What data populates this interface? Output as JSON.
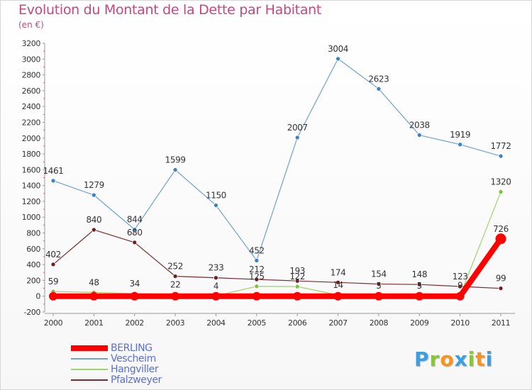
{
  "title": "Evolution du Montant de la Dette par Habitant",
  "subtitle": "(en €)",
  "brand": {
    "letters": [
      "P",
      "r",
      "o",
      "x",
      "i",
      "t",
      "i"
    ],
    "colors": [
      "#3aa0e0",
      "#8ac43f",
      "#f7941d",
      "#3aa0e0",
      "#8ac43f",
      "#f7941d",
      "#3aa0e0"
    ]
  },
  "chart_data": {
    "type": "line",
    "x": [
      "2000",
      "2001",
      "2002",
      "2003",
      "2004",
      "2005",
      "2006",
      "2007",
      "2008",
      "2009",
      "2010",
      "2011"
    ],
    "ylim": [
      -200,
      3200
    ],
    "yticks": [
      -200,
      0,
      200,
      400,
      600,
      800,
      1000,
      1200,
      1400,
      1600,
      1800,
      2000,
      2200,
      2400,
      2600,
      2800,
      3000,
      3200
    ],
    "grid": false,
    "legend_position": "bottom-left",
    "series": [
      {
        "name": "Vescheim",
        "color": "#6ea2cc",
        "marker_color": "#3b82c4",
        "width": 1.2,
        "values": [
          1461,
          1279,
          844,
          1599,
          1150,
          452,
          2007,
          3004,
          2623,
          2038,
          1919,
          1772
        ],
        "labels": [
          "1461",
          "1279",
          "844",
          "1599",
          "1150",
          "452",
          "2007",
          "3004",
          "2623",
          "2038",
          "1919",
          "1772"
        ]
      },
      {
        "name": "Pfalzweyer",
        "color": "#7a2a30",
        "marker_color": "#6d1f26",
        "width": 1.2,
        "values": [
          402,
          840,
          680,
          252,
          233,
          212,
          193,
          174,
          154,
          148,
          123,
          99
        ],
        "labels": [
          "402",
          "840",
          "680",
          "252",
          "233",
          "212",
          "193",
          "174",
          "154",
          "148",
          "123",
          "99"
        ]
      },
      {
        "name": "Hangviller",
        "color": "#9ed36a",
        "marker_color": "#7cc23c",
        "width": 1.2,
        "values": [
          59,
          48,
          34,
          22,
          4,
          125,
          122,
          14,
          5,
          5,
          9,
          1320
        ],
        "labels": [
          "59",
          "48",
          "34",
          "22",
          "4",
          "125",
          "122",
          "14",
          "5",
          "5",
          "9",
          "1320"
        ]
      },
      {
        "name": "BERLING",
        "color": "#ff0000",
        "marker_color": "#ff0000",
        "width": 8,
        "values": [
          0,
          0,
          0,
          0,
          0,
          0,
          0,
          0,
          0,
          0,
          0,
          726
        ],
        "labels": [
          "",
          "",
          "",
          "",
          "",
          "",
          "",
          "",
          "",
          "",
          "",
          "726"
        ]
      }
    ],
    "legend": [
      "BERLING",
      "Vescheim",
      "Hangviller",
      "Pfalzweyer"
    ]
  }
}
